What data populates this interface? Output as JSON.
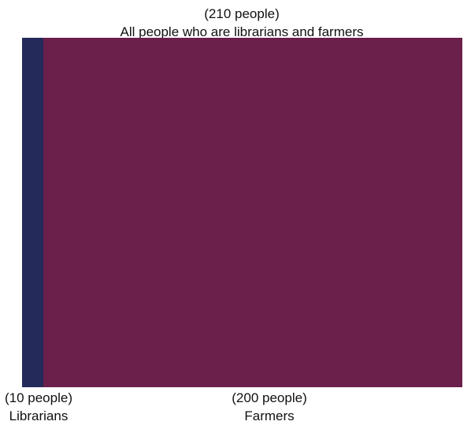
{
  "header": {
    "count": "(210 people)",
    "title": "All people who are librarians and farmers"
  },
  "groups": [
    {
      "count": "(10 people)",
      "name": "Librarians",
      "value": 10,
      "color": "#242a5a"
    },
    {
      "count": "(200 people)",
      "name": "Farmers",
      "value": 200,
      "color": "#6b1f4b"
    }
  ],
  "total": 210
}
